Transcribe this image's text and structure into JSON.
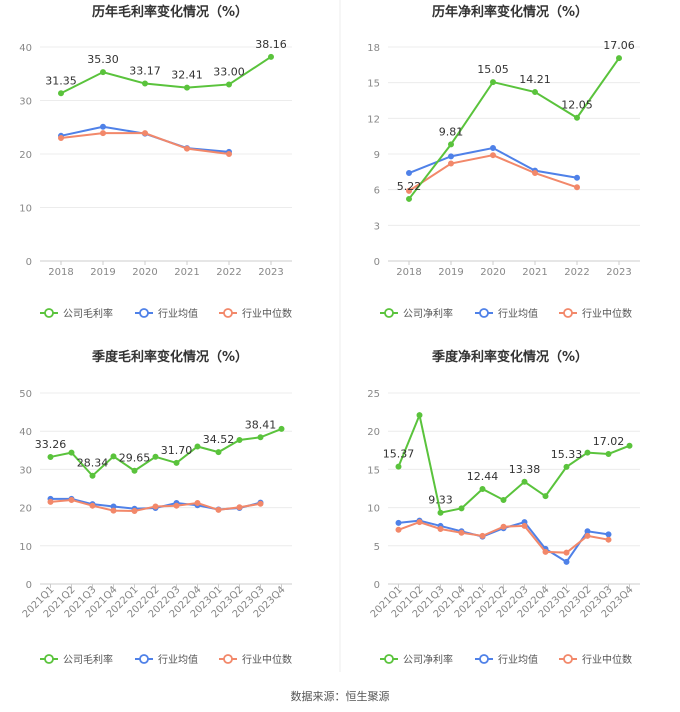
{
  "source_text": "数据来源：恒生聚源",
  "colors": {
    "company": "#5ac33c",
    "industry_avg": "#4f81e8",
    "industry_median": "#f2886a"
  },
  "chart_data": [
    {
      "type": "line",
      "title": "历年毛利率变化情况（%）",
      "categories": [
        "2018",
        "2019",
        "2020",
        "2021",
        "2022",
        "2023"
      ],
      "ylim": [
        0,
        40
      ],
      "yticks": [
        0,
        10,
        20,
        30,
        40
      ],
      "grid": true,
      "legend": "bottom",
      "series": [
        {
          "name": "公司毛利率",
          "values": [
            31.35,
            35.3,
            33.17,
            32.41,
            33.0,
            38.16
          ],
          "labels": [
            "31.35",
            "35.30",
            "33.17",
            "32.41",
            "33.00",
            "38.16"
          ]
        },
        {
          "name": "行业均值",
          "values": [
            23.4,
            25.1,
            23.8,
            21.1,
            20.4,
            null
          ]
        },
        {
          "name": "行业中位数",
          "values": [
            23.0,
            23.9,
            23.9,
            21.0,
            20.0,
            null
          ]
        }
      ]
    },
    {
      "type": "line",
      "title": "历年净利率变化情况（%）",
      "categories": [
        "2018",
        "2019",
        "2020",
        "2021",
        "2022",
        "2023"
      ],
      "ylim": [
        0,
        18
      ],
      "yticks": [
        0,
        3,
        6,
        9,
        12,
        15,
        18
      ],
      "grid": true,
      "legend": "bottom",
      "series": [
        {
          "name": "公司净利率",
          "values": [
            5.22,
            9.81,
            15.05,
            14.21,
            12.05,
            17.06
          ],
          "labels": [
            "5.22",
            "9.81",
            "15.05",
            "14.21",
            "12.05",
            "17.06"
          ]
        },
        {
          "name": "行业均值",
          "values": [
            7.4,
            8.8,
            9.5,
            7.6,
            7.0,
            null
          ]
        },
        {
          "name": "行业中位数",
          "values": [
            5.9,
            8.2,
            8.9,
            7.4,
            6.2,
            null
          ]
        }
      ]
    },
    {
      "type": "line",
      "title": "季度毛利率变化情况（%）",
      "categories": [
        "2021Q1",
        "2021Q2",
        "2021Q3",
        "2021Q4",
        "2022Q1",
        "2022Q2",
        "2022Q3",
        "2022Q4",
        "2023Q1",
        "2023Q2",
        "2023Q3",
        "2023Q4"
      ],
      "ylim": [
        0,
        50
      ],
      "yticks": [
        0,
        10,
        20,
        30,
        40,
        50
      ],
      "grid": true,
      "legend": "bottom",
      "series": [
        {
          "name": "公司毛利率",
          "values": [
            33.26,
            34.4,
            28.34,
            33.4,
            29.65,
            33.3,
            31.7,
            36.0,
            34.52,
            37.7,
            38.41,
            40.6
          ],
          "labels": [
            "33.26",
            "",
            "28.34",
            "",
            "29.65",
            "",
            "31.70",
            "",
            "34.52",
            "",
            "38.41",
            ""
          ]
        },
        {
          "name": "行业均值",
          "values": [
            22.3,
            22.3,
            20.9,
            20.3,
            19.7,
            19.9,
            21.2,
            20.6,
            19.5,
            19.9,
            21.3,
            null
          ]
        },
        {
          "name": "行业中位数",
          "values": [
            21.5,
            22.0,
            20.5,
            19.2,
            19.1,
            20.3,
            20.5,
            21.2,
            19.4,
            20.1,
            21.0,
            null
          ]
        }
      ]
    },
    {
      "type": "line",
      "title": "季度净利率变化情况（%）",
      "categories": [
        "2021Q1",
        "2021Q2",
        "2021Q3",
        "2021Q4",
        "2022Q1",
        "2022Q2",
        "2022Q3",
        "2022Q4",
        "2023Q1",
        "2023Q2",
        "2023Q3",
        "2023Q4"
      ],
      "ylim": [
        0,
        25
      ],
      "yticks": [
        0,
        5,
        10,
        15,
        20,
        25
      ],
      "grid": true,
      "legend": "bottom",
      "series": [
        {
          "name": "公司净利率",
          "values": [
            15.37,
            22.1,
            9.33,
            9.9,
            12.44,
            11.0,
            13.38,
            11.5,
            15.33,
            17.2,
            17.02,
            18.1
          ],
          "labels": [
            "15.37",
            "",
            "9.33",
            "",
            "12.44",
            "",
            "13.38",
            "",
            "15.33",
            "",
            "17.02",
            ""
          ]
        },
        {
          "name": "行业均值",
          "values": [
            8.0,
            8.3,
            7.6,
            6.9,
            6.2,
            7.3,
            8.1,
            4.6,
            2.9,
            6.9,
            6.5,
            null
          ]
        },
        {
          "name": "行业中位数",
          "values": [
            7.1,
            8.1,
            7.2,
            6.7,
            6.3,
            7.5,
            7.6,
            4.2,
            4.1,
            6.3,
            5.8,
            null
          ]
        }
      ]
    }
  ]
}
